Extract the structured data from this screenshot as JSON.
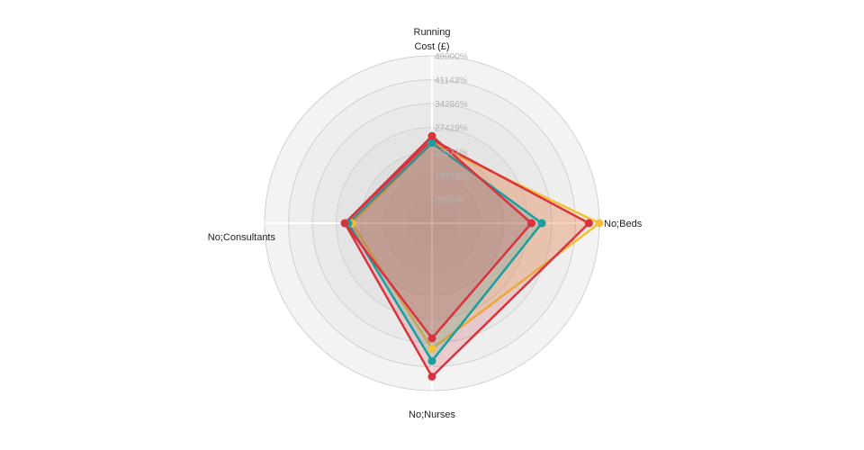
{
  "chart_data": {
    "type": "radar",
    "axes": [
      "Running Cost (£)",
      "No;Beds",
      "No;Nurses",
      "No;Consultants"
    ],
    "rlim": [
      0,
      48000
    ],
    "ticks": [
      6857,
      13714,
      20571,
      27429,
      34286,
      41143,
      48000
    ],
    "tick_labels": [
      "6857%",
      "13714%",
      "20571%",
      "27429%",
      "34286%",
      "41143%",
      "48000%"
    ],
    "grid": true,
    "legend": false,
    "series": [
      {
        "color": "#f2c037",
        "values": [
          23000,
          48000,
          36000,
          23000
        ]
      },
      {
        "color": "#d8343f",
        "values": [
          24000,
          45000,
          44000,
          25000
        ]
      },
      {
        "color": "#1a9e9e",
        "values": [
          23000,
          31500,
          39500,
          24000
        ]
      },
      {
        "color": "#d8343f",
        "values": [
          25000,
          28500,
          33000,
          25000
        ]
      }
    ]
  }
}
